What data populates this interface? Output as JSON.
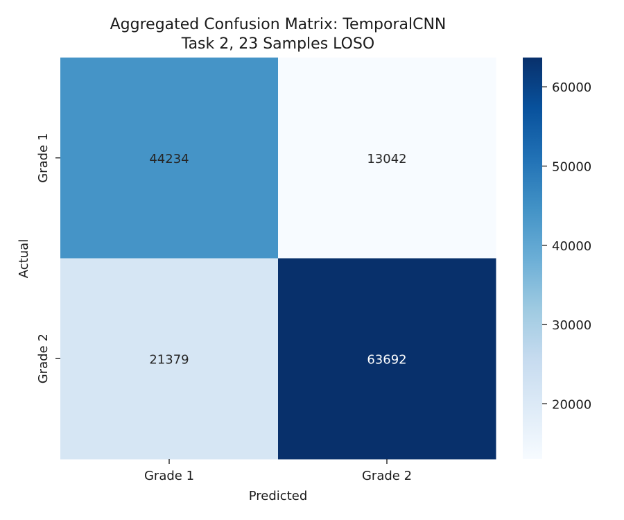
{
  "chart_data": {
    "type": "heatmap",
    "title": [
      "Aggregated Confusion Matrix: TemporalCNN",
      "Task 2, 23 Samples LOSO"
    ],
    "xlabel": "Predicted",
    "ylabel": "Actual",
    "x_categories": [
      "Grade 1",
      "Grade 2"
    ],
    "y_categories": [
      "Grade 1",
      "Grade 2"
    ],
    "values": [
      [
        44234,
        13042
      ],
      [
        21379,
        63692
      ]
    ],
    "colormap": "Blues",
    "colorbar": {
      "vmin": 13042,
      "vmax": 63692,
      "ticks": [
        20000,
        30000,
        40000,
        50000,
        60000
      ],
      "tick_labels": [
        "20000",
        "30000",
        "40000",
        "50000",
        "60000"
      ]
    }
  }
}
